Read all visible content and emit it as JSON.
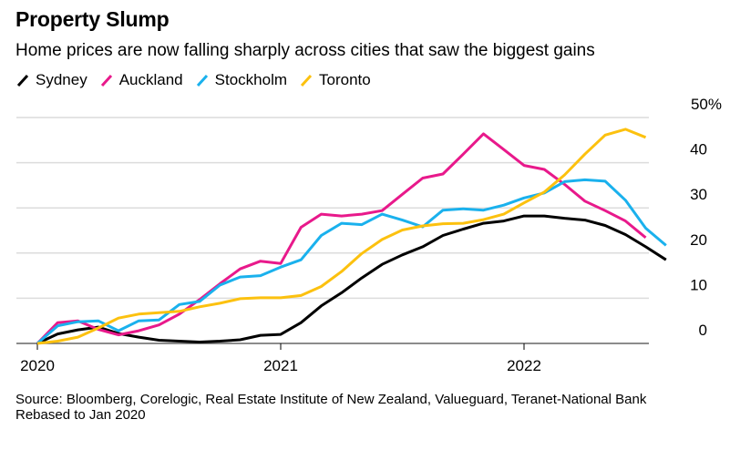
{
  "chart_data": {
    "type": "line",
    "title": "Property Slump",
    "subtitle": "Home prices are now falling sharply across cities that saw the biggest gains",
    "xlabel": "",
    "ylabel": "",
    "x_start": "2020-01",
    "x_unit": "month",
    "x_ticks": [
      {
        "label": "2020",
        "month_index": 0
      },
      {
        "label": "2021",
        "month_index": 12
      },
      {
        "label": "2022",
        "month_index": 24
      }
    ],
    "y_ticks": [
      "0",
      "10",
      "20",
      "30",
      "40",
      "50%"
    ],
    "y_tick_values": [
      0,
      10,
      20,
      30,
      40,
      50
    ],
    "ylim": [
      0,
      50
    ],
    "grid": true,
    "y_axis_side": "right",
    "legend_position": "top-left",
    "series": [
      {
        "name": "Sydney",
        "color": "#000000",
        "values": [
          0,
          2.1,
          3.0,
          3.6,
          2.2,
          1.4,
          0.7,
          0.5,
          0.3,
          0.5,
          0.8,
          1.8,
          2.0,
          4.6,
          8.3,
          11.2,
          14.5,
          17.5,
          19.6,
          21.4,
          23.9,
          25.3,
          26.6,
          27.1,
          28.2,
          28.2,
          27.7,
          27.3,
          26.1,
          24.1,
          21.4,
          18.5
        ]
      },
      {
        "name": "Auckland",
        "color": "#e8198b",
        "values": [
          0,
          4.6,
          5.0,
          3.1,
          1.9,
          2.8,
          4.1,
          6.5,
          9.7,
          13.2,
          16.5,
          18.2,
          17.7,
          25.7,
          28.6,
          28.2,
          28.6,
          29.4,
          33.0,
          36.6,
          37.5,
          41.9,
          46.4,
          42.9,
          39.4,
          38.5,
          35.2,
          31.5,
          29.4,
          27.1,
          23.4
        ]
      },
      {
        "name": "Stockholm",
        "color": "#1ab1ed",
        "values": [
          0,
          3.9,
          4.8,
          5.0,
          2.8,
          5.0,
          5.2,
          8.6,
          9.3,
          12.9,
          14.7,
          15.0,
          16.9,
          18.5,
          23.9,
          26.6,
          26.3,
          28.6,
          27.3,
          25.8,
          29.5,
          29.8,
          29.5,
          30.6,
          32.2,
          33.3,
          35.8,
          36.2,
          35.9,
          31.7,
          25.5,
          21.7
        ]
      },
      {
        "name": "Toronto",
        "color": "#fcc10f",
        "values": [
          0,
          0.5,
          1.4,
          3.4,
          5.6,
          6.5,
          6.8,
          7.1,
          8.1,
          8.9,
          9.9,
          10.1,
          10.1,
          10.6,
          12.6,
          15.9,
          19.9,
          23.0,
          25.1,
          26.0,
          26.5,
          26.6,
          27.4,
          28.6,
          31.1,
          33.5,
          37.3,
          41.9,
          46.1,
          47.4,
          45.6
        ]
      }
    ]
  },
  "footer": {
    "source": "Source: Bloomberg, Corelogic, Real Estate Institute of New Zealand, Valueguard, Teranet-National Bank",
    "note": "Rebased to Jan 2020"
  }
}
